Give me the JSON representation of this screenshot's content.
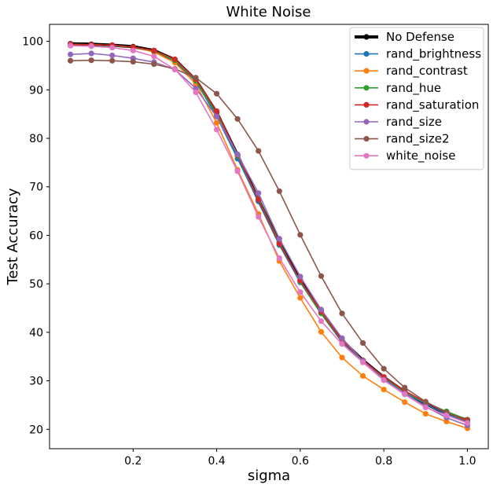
{
  "chart_data": {
    "type": "line",
    "title": "White Noise",
    "xlabel": "sigma",
    "ylabel": "Test Accuracy",
    "xlim": [
      0.0,
      1.05
    ],
    "ylim": [
      16,
      103.5
    ],
    "xticks": [
      "0.2",
      "0.4",
      "0.6",
      "0.8",
      "1.0"
    ],
    "yticks": [
      "20",
      "30",
      "40",
      "50",
      "60",
      "70",
      "80",
      "90",
      "100"
    ],
    "legend_position": "top-right",
    "grid": false,
    "x": [
      0.05,
      0.1,
      0.15,
      0.2,
      0.25,
      0.3,
      0.35,
      0.4,
      0.45,
      0.5,
      0.55,
      0.6,
      0.65,
      0.7,
      0.75,
      0.8,
      0.85,
      0.9,
      0.95,
      1.0
    ],
    "series": [
      {
        "name": "No Defense",
        "color": "#000000",
        "linewidth": 4,
        "values": [
          99.5,
          99.4,
          99.2,
          98.9,
          98.1,
          96.2,
          92.0,
          85.3,
          76.5,
          67.3,
          58.5,
          50.7,
          44.2,
          38.3,
          34.2,
          30.7,
          27.7,
          25.3,
          23.2,
          21.9
        ]
      },
      {
        "name": "rand_brightness",
        "color": "#1f77b4",
        "linewidth": 1.6,
        "values": [
          99.4,
          99.3,
          99.1,
          98.8,
          98.0,
          96.0,
          91.8,
          84.5,
          75.8,
          67.0,
          58.0,
          50.3,
          44.0,
          38.0,
          34.0,
          30.5,
          27.6,
          25.2,
          23.1,
          21.5
        ]
      },
      {
        "name": "rand_contrast",
        "color": "#ff7f0e",
        "linewidth": 1.6,
        "values": [
          99.4,
          99.3,
          99.2,
          98.8,
          97.8,
          95.6,
          91.2,
          83.2,
          73.5,
          64.4,
          54.7,
          47.1,
          40.1,
          34.8,
          31.0,
          28.2,
          25.6,
          23.2,
          21.6,
          20.2
        ]
      },
      {
        "name": "rand_hue",
        "color": "#2ca02c",
        "linewidth": 1.6,
        "values": [
          99.4,
          99.3,
          99.1,
          98.8,
          98.0,
          96.1,
          91.9,
          85.0,
          76.4,
          67.5,
          58.6,
          50.5,
          43.9,
          38.2,
          34.2,
          30.7,
          27.7,
          25.5,
          23.7,
          22.0
        ]
      },
      {
        "name": "rand_saturation",
        "color": "#d62728",
        "linewidth": 1.6,
        "values": [
          99.4,
          99.3,
          99.2,
          98.8,
          98.1,
          96.3,
          92.2,
          85.6,
          76.6,
          67.4,
          58.3,
          50.7,
          44.3,
          38.3,
          34.2,
          30.8,
          27.9,
          25.6,
          23.4,
          21.9
        ]
      },
      {
        "name": "rand_size",
        "color": "#9467bd",
        "linewidth": 1.6,
        "values": [
          97.3,
          97.5,
          97.1,
          96.5,
          95.7,
          94.2,
          90.3,
          84.5,
          76.7,
          68.7,
          59.3,
          51.5,
          44.7,
          38.8,
          34.1,
          30.2,
          27.4,
          24.7,
          22.4,
          20.8
        ]
      },
      {
        "name": "rand_size2",
        "color": "#8c564b",
        "linewidth": 1.6,
        "values": [
          96.0,
          96.1,
          96.0,
          95.8,
          95.3,
          94.3,
          92.5,
          89.2,
          84.0,
          77.4,
          69.1,
          60.1,
          51.6,
          43.9,
          37.8,
          32.5,
          28.6,
          25.7,
          23.5,
          21.6
        ]
      },
      {
        "name": "white_noise",
        "color": "#e377c2",
        "linewidth": 1.6,
        "values": [
          99.1,
          99.0,
          98.7,
          98.1,
          96.9,
          94.2,
          89.5,
          81.8,
          73.2,
          63.8,
          55.3,
          48.3,
          42.3,
          37.6,
          33.8,
          30.1,
          27.2,
          24.5,
          22.9,
          21.3
        ]
      }
    ]
  }
}
